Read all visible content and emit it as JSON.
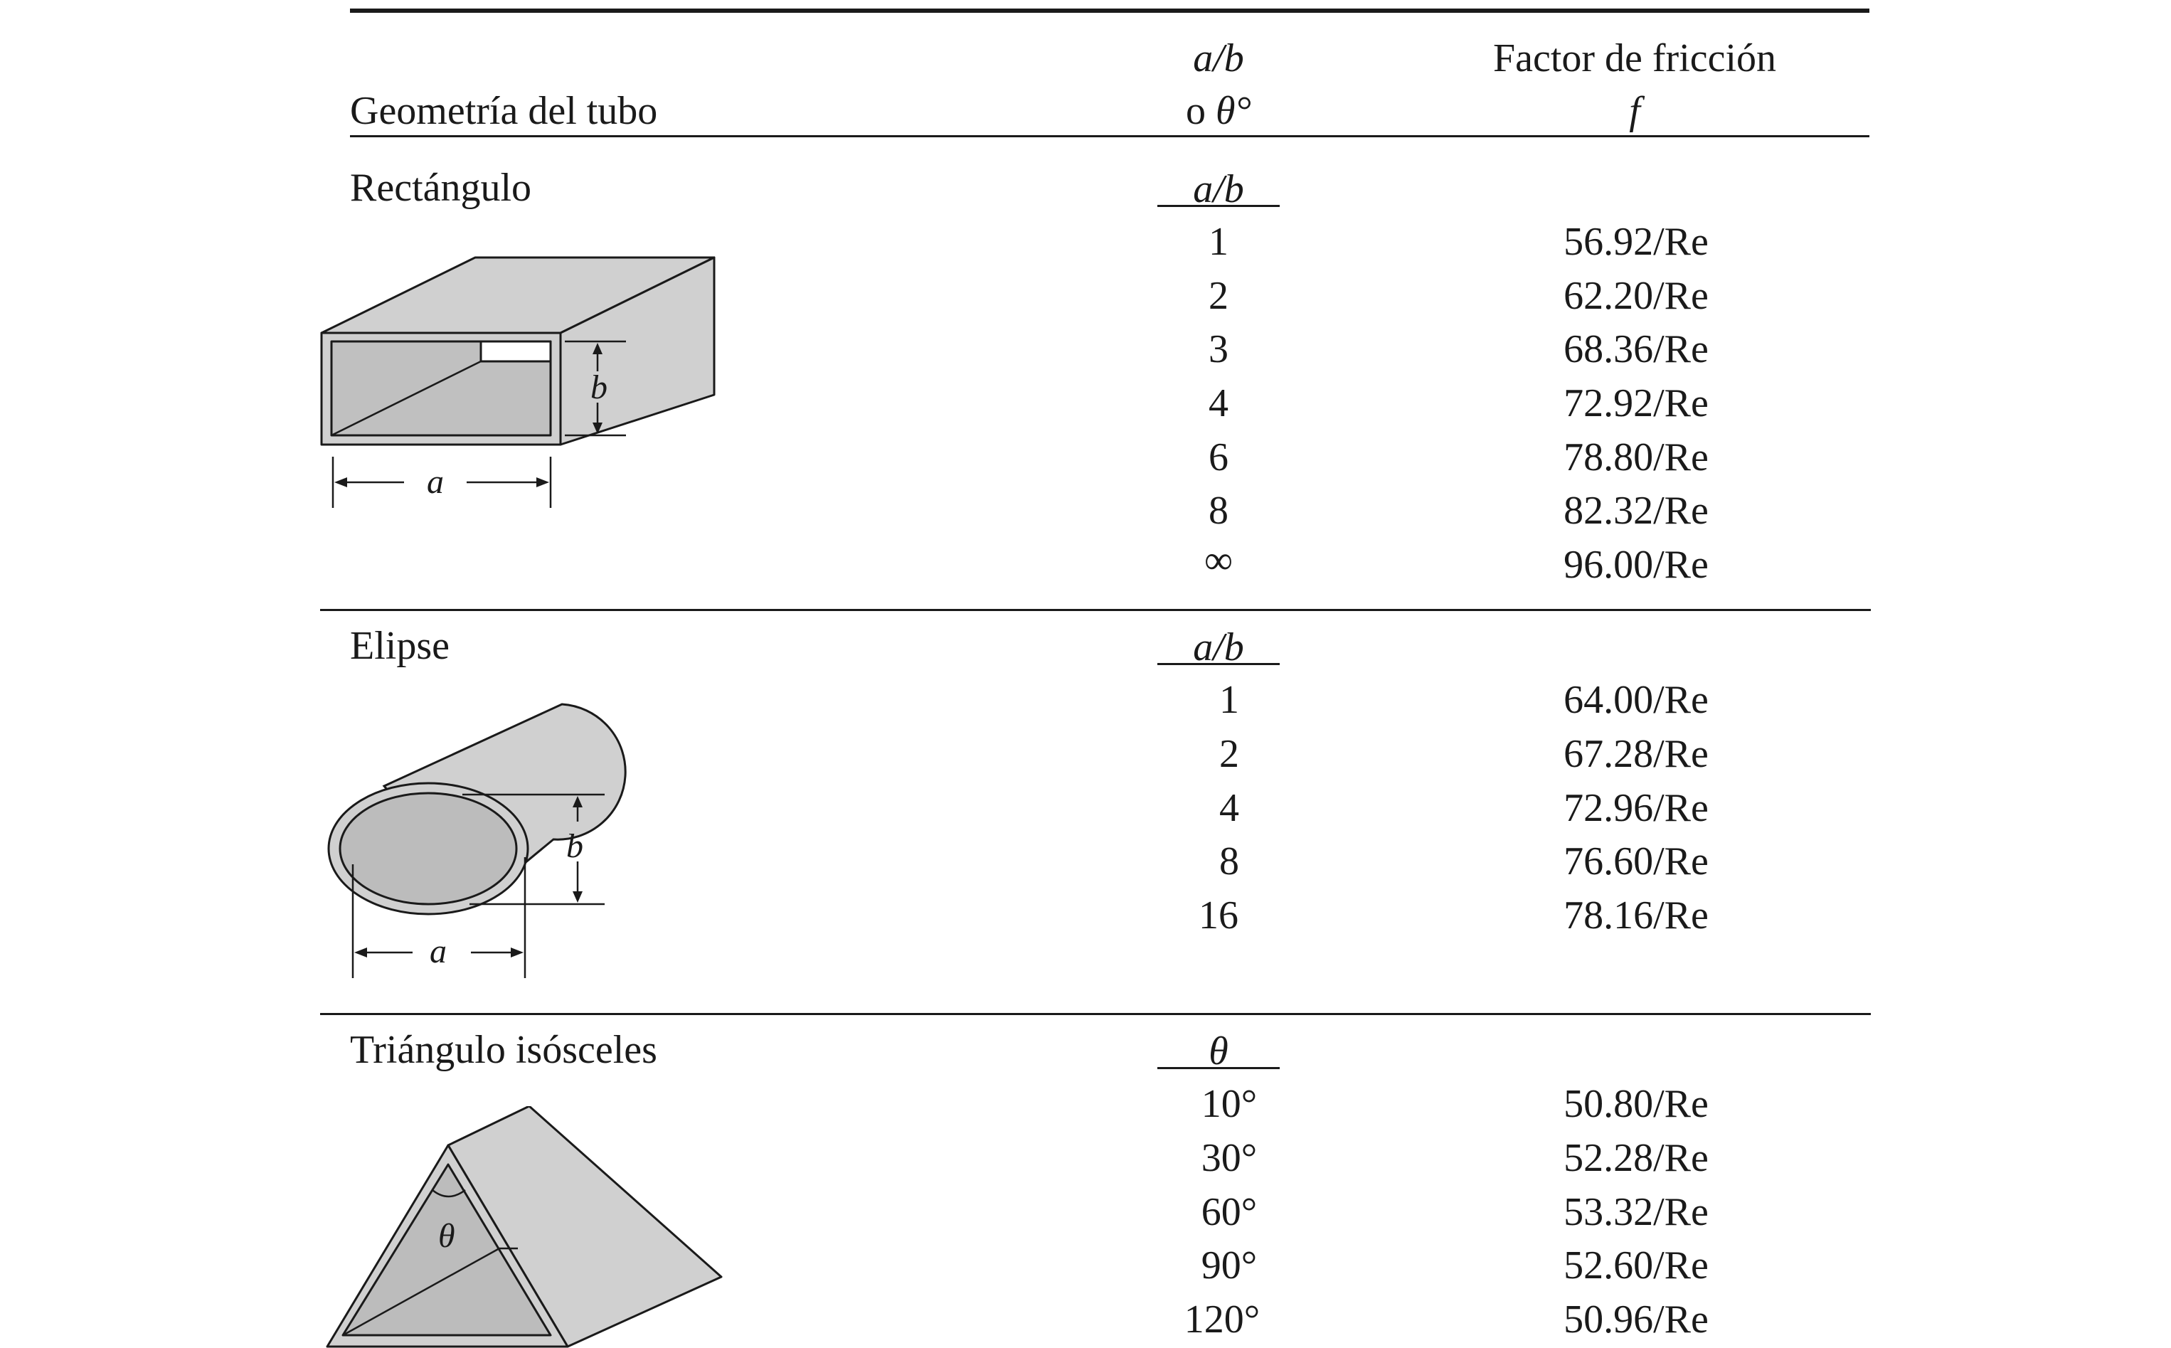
{
  "header": {
    "geometry_label": "Geometría del tubo",
    "param_line1": "a/b",
    "param_line2_prefix": "o ",
    "param_line2_symbol": "θ°",
    "friction_line1": "Factor de fricción",
    "friction_line2": "f"
  },
  "sections": [
    {
      "name": "Rectángulo",
      "param_label": "a/b",
      "rows": [
        {
          "param": "1",
          "friction": "56.92/Re"
        },
        {
          "param": "2",
          "friction": "62.20/Re"
        },
        {
          "param": "3",
          "friction": "68.36/Re"
        },
        {
          "param": "4",
          "friction": "72.92/Re"
        },
        {
          "param": "6",
          "friction": "78.80/Re"
        },
        {
          "param": "8",
          "friction": "82.32/Re"
        },
        {
          "param": "∞",
          "friction": "96.00/Re"
        }
      ],
      "figure_labels": {
        "a": "a",
        "b": "b"
      }
    },
    {
      "name": "Elipse",
      "param_label": "a/b",
      "rows": [
        {
          "param": "1",
          "friction": "64.00/Re"
        },
        {
          "param": "2",
          "friction": "67.28/Re"
        },
        {
          "param": "4",
          "friction": "72.96/Re"
        },
        {
          "param": "8",
          "friction": "76.60/Re"
        },
        {
          "param": "16",
          "friction": "78.16/Re"
        }
      ],
      "figure_labels": {
        "a": "a",
        "b": "b"
      }
    },
    {
      "name": "Triángulo isósceles",
      "param_label": "θ",
      "rows": [
        {
          "param": "10°",
          "friction": "50.80/Re"
        },
        {
          "param": "30°",
          "friction": "52.28/Re"
        },
        {
          "param": "60°",
          "friction": "53.32/Re"
        },
        {
          "param": "90°",
          "friction": "52.60/Re"
        },
        {
          "param": "120°",
          "friction": "50.96/Re"
        }
      ],
      "figure_labels": {
        "theta": "θ"
      }
    }
  ],
  "colors": {
    "ink": "#1a1a1a",
    "pipe_fill": "#d0d0d0",
    "pipe_inner": "#bcbcbc"
  }
}
